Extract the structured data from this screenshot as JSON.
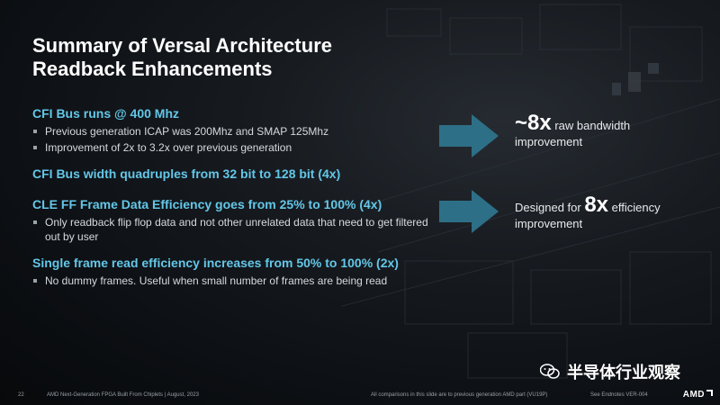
{
  "slide": {
    "title_line1": "Summary of Versal Architecture",
    "title_line2": "Readback Enhancements",
    "sections": [
      {
        "heading": "CFI Bus runs @ 400 Mhz",
        "bullets": [
          "Previous generation ICAP was 200Mhz and SMAP 125Mhz",
          "Improvement of 2x to 3.2x over previous generation"
        ]
      },
      {
        "heading": "CFI Bus width quadruples from 32 bit to 128 bit (4x)",
        "bullets": []
      },
      {
        "heading": "CLE FF Frame Data Efficiency goes from 25% to 100% (4x)",
        "bullets": [
          "Only readback flip flop data and not other unrelated data that need to get filtered out by user"
        ]
      },
      {
        "heading": "Single frame read efficiency increases from 50% to 100% (2x)",
        "bullets": [
          "No dummy frames. Useful when small number of frames are being read"
        ]
      }
    ],
    "callout1": {
      "big": "~8x",
      "rest": " raw bandwidth",
      "line2": "improvement"
    },
    "callout2": {
      "prefix": "Designed for ",
      "big": "8x",
      "rest": " efficiency",
      "line2": "improvement"
    }
  },
  "footer": {
    "page_number": "22",
    "left_text": "AMD Next-Generation FPGA Built From Chiplets  |  August, 2023",
    "center_text": "All comparisons in this slide are to previous generation AMD part (VU19P)",
    "right_text": "See Endnotes VER-004"
  },
  "watermark": {
    "text": "半导体行业观察"
  },
  "logo": {
    "text": "AMD"
  },
  "colors": {
    "accent": "#63c7e8",
    "arrow": "#2d6f86",
    "background": "#0d1014"
  }
}
